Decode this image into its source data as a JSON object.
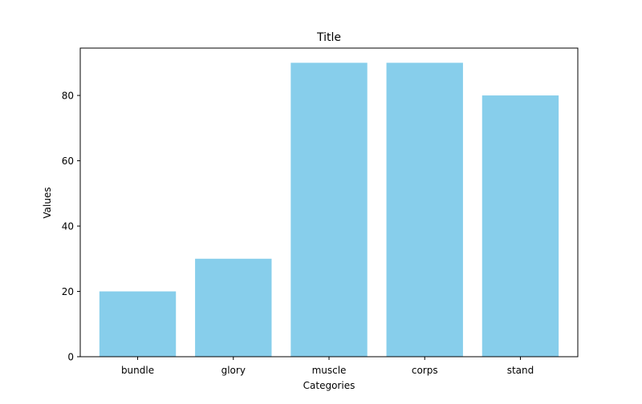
{
  "chart_data": {
    "type": "bar",
    "title": "Title",
    "xlabel": "Categories",
    "ylabel": "Values",
    "categories": [
      "bundle",
      "glory",
      "muscle",
      "corps",
      "stand"
    ],
    "values": [
      20,
      30,
      90,
      90,
      80
    ],
    "ylim": [
      0,
      94.5
    ],
    "yticks": [
      0,
      20,
      40,
      60,
      80
    ],
    "bar_color": "#87ceeb",
    "grid": false,
    "legend": "none"
  }
}
